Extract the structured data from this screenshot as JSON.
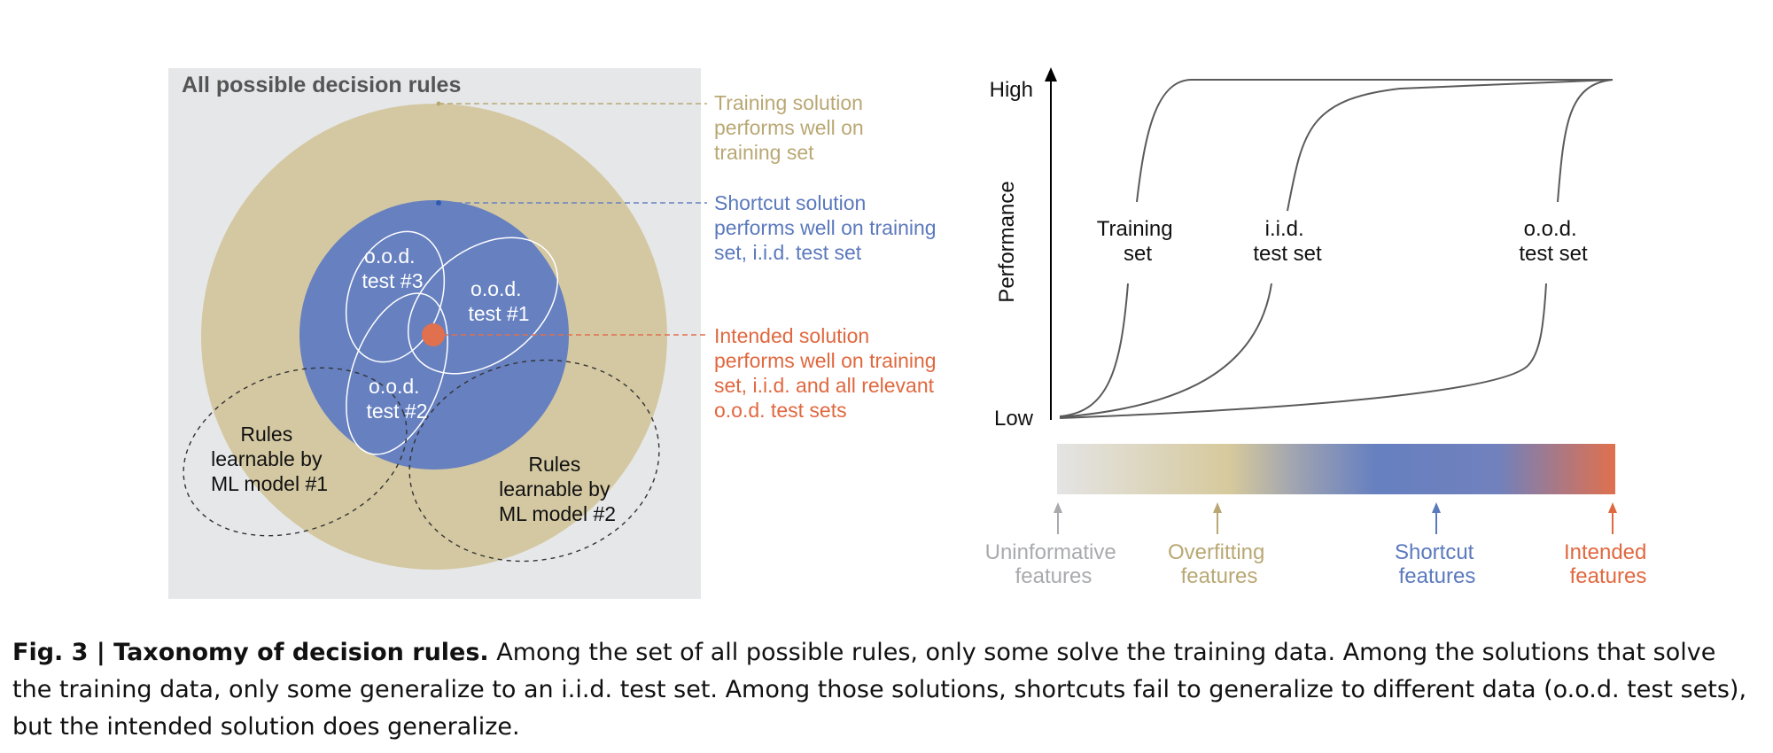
{
  "colors": {
    "panel": "#e6e7e9",
    "training": "#d4c8a2",
    "shortcut": "#6680c0",
    "intended": "#e0704e",
    "uninformative": "#a9aaad",
    "overfitting": "#b9a874",
    "axis": "#000000",
    "curve": "#5a5a5a"
  },
  "left_diagram": {
    "panel_title": "All possible decision rules",
    "ood3": [
      "o.o.d.",
      "test #3"
    ],
    "ood1": [
      "o.o.d.",
      "test #1"
    ],
    "ood2": [
      "o.o.d.",
      "test #2"
    ],
    "model1": [
      "Rules",
      "learnable by",
      "ML model #1"
    ],
    "model2": [
      "Rules",
      "learnable by",
      "ML model #2"
    ]
  },
  "annotations": {
    "training": [
      "Training solution",
      "performs well on",
      "training set"
    ],
    "shortcut": [
      "Shortcut solution",
      "performs well on training",
      "set, i.i.d. test set"
    ],
    "intended": [
      "Intended solution",
      "performs well on training",
      "set, i.i.d. and all relevant",
      "o.o.d. test sets"
    ]
  },
  "performance_chart": {
    "y_axis_label": "Performance",
    "y_high": "High",
    "y_low": "Low",
    "curves": [
      [
        "Training",
        "set"
      ],
      [
        "i.i.d.",
        "test set"
      ],
      [
        "o.o.d.",
        "test set"
      ]
    ]
  },
  "feature_bar": {
    "labels": [
      [
        "Uninformative",
        "features"
      ],
      [
        "Overfitting",
        "features"
      ],
      [
        "Shortcut",
        "features"
      ],
      [
        "Intended",
        "features"
      ]
    ]
  },
  "caption": {
    "title": "Fig. 3 | Taxonomy of decision rules.",
    "body": " Among the set of all possible rules, only some solve the training data. Among the solutions that solve the training data, only some generalize to an i.i.d. test set. Among those solutions, shortcuts fail to generalize to different data (o.o.d. test sets), but the intended solution does generalize."
  }
}
